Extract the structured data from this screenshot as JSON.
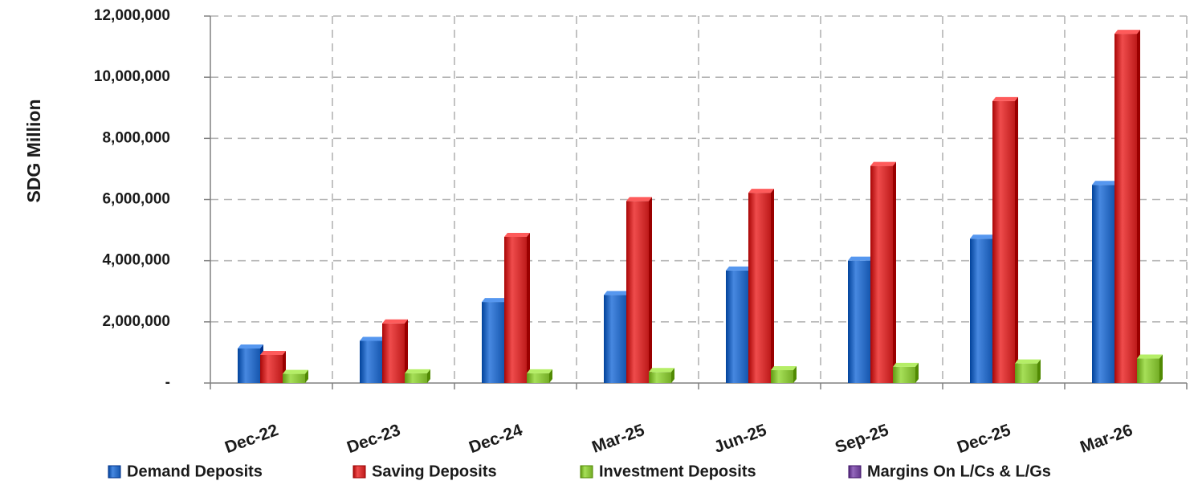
{
  "chart_data": {
    "type": "bar",
    "title": "",
    "xlabel": "",
    "ylabel": "SDG Million",
    "ylim": [
      0,
      12000000
    ],
    "yticks": [
      0,
      2000000,
      4000000,
      6000000,
      8000000,
      10000000,
      12000000
    ],
    "ytick_labels": [
      "-",
      "2,000,000",
      "4,000,000",
      "6,000,000",
      "8,000,000",
      "10,000,000",
      "12,000,000"
    ],
    "categories": [
      "Dec-22",
      "Dec-23",
      "Dec-24",
      "Mar-25",
      "Jun-25",
      "Sep-25",
      "Dec-25",
      "Mar-26"
    ],
    "grid": true,
    "legend_position": "bottom",
    "series": [
      {
        "name": "Demand Deposits",
        "color": "#2E6FC7",
        "values": [
          1130000,
          1380000,
          2650000,
          2880000,
          3680000,
          4000000,
          4720000,
          6480000
        ]
      },
      {
        "name": "Saving Deposits",
        "color": "#D63333",
        "values": [
          920000,
          1950000,
          4780000,
          5950000,
          6220000,
          7100000,
          9220000,
          11420000
        ]
      },
      {
        "name": "Investment Deposits",
        "color": "#8DC63F",
        "values": [
          300000,
          320000,
          320000,
          360000,
          420000,
          530000,
          640000,
          800000
        ]
      },
      {
        "name": "Margins On L/Cs & L/Gs",
        "color": "#7B4FA3",
        "values": [
          0,
          0,
          0,
          0,
          0,
          0,
          0,
          0
        ]
      }
    ]
  }
}
